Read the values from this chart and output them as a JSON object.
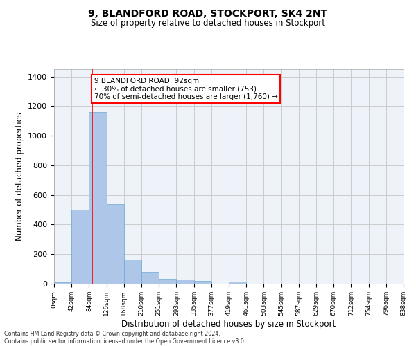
{
  "title1": "9, BLANDFORD ROAD, STOCKPORT, SK4 2NT",
  "title2": "Size of property relative to detached houses in Stockport",
  "xlabel": "Distribution of detached houses by size in Stockport",
  "ylabel": "Number of detached properties",
  "bin_labels": [
    "0sqm",
    "42sqm",
    "84sqm",
    "126sqm",
    "168sqm",
    "210sqm",
    "251sqm",
    "293sqm",
    "335sqm",
    "377sqm",
    "419sqm",
    "461sqm",
    "503sqm",
    "545sqm",
    "587sqm",
    "629sqm",
    "670sqm",
    "712sqm",
    "754sqm",
    "796sqm",
    "838sqm"
  ],
  "bar_values": [
    10,
    500,
    1160,
    540,
    163,
    80,
    35,
    28,
    18,
    0,
    15,
    0,
    0,
    0,
    0,
    0,
    0,
    0,
    0,
    0
  ],
  "bar_color": "#aec6e8",
  "bar_edge_color": "#6aaad4",
  "grid_color": "#cccccc",
  "background_color": "#eef2f9",
  "red_line_x": 2.19,
  "annotation_text": "9 BLANDFORD ROAD: 92sqm\n← 30% of detached houses are smaller (753)\n70% of semi-detached houses are larger (1,760) →",
  "footer_text": "Contains HM Land Registry data © Crown copyright and database right 2024.\nContains public sector information licensed under the Open Government Licence v3.0.",
  "ylim": [
    0,
    1450
  ],
  "yticks": [
    0,
    200,
    400,
    600,
    800,
    1000,
    1200,
    1400
  ]
}
